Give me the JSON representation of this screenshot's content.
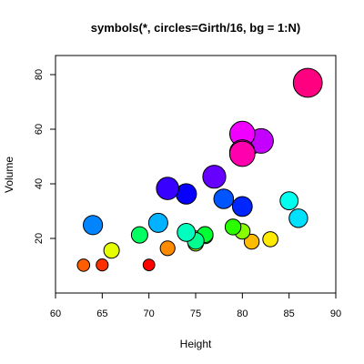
{
  "chart_data": {
    "type": "scatter",
    "title": "symbols(*, circles=Girth/16, bg = 1:N)",
    "xlabel": "Height",
    "ylabel": "Volume",
    "xlim": [
      60,
      90
    ],
    "ylim": [
      0,
      87
    ],
    "xticks": [
      60,
      65,
      70,
      75,
      80,
      85,
      90
    ],
    "yticks": [
      20,
      40,
      60,
      80
    ],
    "xtick_labels": [
      "60",
      "65",
      "70",
      "75",
      "80",
      "85",
      "90"
    ],
    "ytick_labels": [
      "20",
      "40",
      "60",
      "80"
    ],
    "grid": false,
    "legend": "none",
    "marker_fill": "rainbow gradient (red to magenta) by observation index",
    "marker_border": "#000000",
    "x": [
      70,
      65,
      63,
      72,
      81,
      83,
      66,
      75,
      80,
      75,
      79,
      76,
      76,
      69,
      75,
      74,
      85,
      86,
      71,
      64,
      78,
      80,
      74,
      72,
      77,
      81,
      82,
      80,
      80,
      80,
      87
    ],
    "y": [
      10.3,
      10.3,
      10.2,
      16.4,
      18.8,
      19.7,
      15.6,
      18.2,
      22.6,
      19.9,
      24.2,
      21.0,
      21.4,
      21.3,
      19.1,
      22.2,
      33.8,
      27.4,
      25.7,
      24.9,
      34.5,
      31.7,
      36.3,
      38.3,
      42.6,
      55.4,
      55.7,
      58.3,
      51.5,
      51.0,
      77.0
    ],
    "girth": [
      8.3,
      8.6,
      8.8,
      10.5,
      10.7,
      10.8,
      11.0,
      11.0,
      11.1,
      11.2,
      11.3,
      11.4,
      11.4,
      11.7,
      12.0,
      12.9,
      12.9,
      13.3,
      13.7,
      13.8,
      14.0,
      14.2,
      14.5,
      16.0,
      16.3,
      17.3,
      17.5,
      17.9,
      18.0,
      18.0,
      20.6
    ]
  }
}
